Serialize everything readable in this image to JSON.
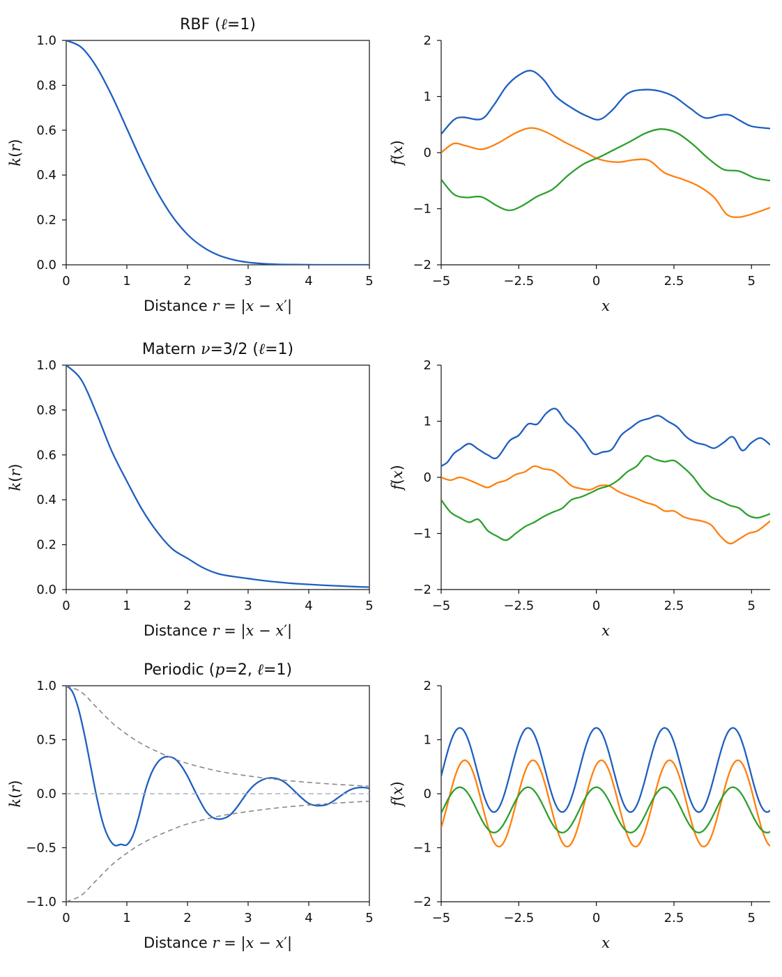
{
  "chart_data": [
    {
      "id": "rbf-kernel",
      "type": "line",
      "title": "RBF (ℓ=1)",
      "xlabel": "Distance r = |x − x′|",
      "ylabel": "k(r)",
      "xlim": [
        0,
        5
      ],
      "ylim": [
        0,
        1
      ],
      "xticks": [
        0,
        1,
        2,
        3,
        4,
        5
      ],
      "xtick_labels": [
        "0",
        "1",
        "2",
        "3",
        "4",
        "5"
      ],
      "yticks": [
        0,
        0.2,
        0.4,
        0.6,
        0.8,
        1.0
      ],
      "ytick_labels": [
        "0.0",
        "0.2",
        "0.4",
        "0.6",
        "0.8",
        "1.0"
      ],
      "grid": false,
      "series": [
        {
          "color": "#1f5fbf",
          "style": "solid",
          "x": [
            0,
            0.25,
            0.5,
            0.75,
            1,
            1.25,
            1.5,
            1.75,
            2,
            2.25,
            2.5,
            2.75,
            3,
            3.25,
            3.5,
            3.75,
            4,
            4.25,
            4.5,
            4.75,
            5
          ],
          "y": [
            1,
            0.969,
            0.882,
            0.755,
            0.607,
            0.458,
            0.325,
            0.216,
            0.135,
            0.08,
            0.044,
            0.023,
            0.011,
            0.005,
            0.002,
            0.001,
            0.0003,
            0.0001,
            0,
            0,
            0
          ]
        }
      ]
    },
    {
      "id": "rbf-samples",
      "type": "line",
      "title": "",
      "xlabel": "x",
      "ylabel": "f(x)",
      "xlim": [
        -5,
        5.6
      ],
      "ylim": [
        -2,
        2
      ],
      "xticks": [
        -5,
        -2.5,
        0,
        2.5,
        5
      ],
      "xtick_labels": [
        "−5",
        "−2.5",
        "0",
        "2.5",
        "5"
      ],
      "yticks": [
        -2,
        -1,
        0,
        1,
        2
      ],
      "ytick_labels": [
        "−2",
        "−1",
        "0",
        "1",
        "2"
      ],
      "grid": false,
      "series": [
        {
          "color": "#1f5fbf",
          "x": [
            -5,
            -4.6,
            -4.3,
            -3.7,
            -3.3,
            -2.9,
            -2.5,
            -2.1,
            -1.7,
            -1.3,
            -0.8,
            -0.3,
            0.1,
            0.5,
            1,
            1.5,
            2,
            2.5,
            3,
            3.5,
            4,
            4.3,
            4.6,
            5,
            5.6
          ],
          "y": [
            0.33,
            0.58,
            0.63,
            0.6,
            0.85,
            1.18,
            1.38,
            1.46,
            1.3,
            1.0,
            0.8,
            0.65,
            0.59,
            0.75,
            1.05,
            1.12,
            1.1,
            1.0,
            0.8,
            0.62,
            0.67,
            0.67,
            0.58,
            0.47,
            0.43
          ]
        },
        {
          "color": "#ff7f0e",
          "x": [
            -5,
            -4.6,
            -4.2,
            -3.7,
            -3.2,
            -2.6,
            -2.1,
            -1.6,
            -1.0,
            -0.4,
            0.1,
            0.7,
            1.2,
            1.7,
            2.2,
            2.8,
            3.3,
            3.8,
            4.2,
            4.6,
            5.1,
            5.6
          ],
          "y": [
            0.0,
            0.16,
            0.12,
            0.06,
            0.16,
            0.35,
            0.44,
            0.36,
            0.18,
            0.02,
            -0.12,
            -0.17,
            -0.13,
            -0.14,
            -0.36,
            -0.48,
            -0.6,
            -0.8,
            -1.1,
            -1.15,
            -1.08,
            -0.98
          ]
        },
        {
          "color": "#2ca02c",
          "x": [
            -5,
            -4.6,
            -4.2,
            -3.7,
            -3.2,
            -2.8,
            -2.4,
            -1.9,
            -1.4,
            -0.9,
            -0.4,
            0.1,
            0.6,
            1.1,
            1.6,
            2.1,
            2.6,
            3.1,
            3.6,
            4.1,
            4.6,
            5.1,
            5.6
          ],
          "y": [
            -0.48,
            -0.74,
            -0.8,
            -0.79,
            -0.95,
            -1.03,
            -0.95,
            -0.78,
            -0.65,
            -0.4,
            -0.2,
            -0.08,
            0.06,
            0.2,
            0.35,
            0.42,
            0.35,
            0.15,
            -0.1,
            -0.3,
            -0.33,
            -0.45,
            -0.5
          ]
        }
      ]
    },
    {
      "id": "matern-kernel",
      "type": "line",
      "title": "Matern ν=3/2 (ℓ=1)",
      "xlabel": "Distance r = |x − x′|",
      "ylabel": "k(r)",
      "xlim": [
        0,
        5
      ],
      "ylim": [
        0,
        1
      ],
      "xticks": [
        0,
        1,
        2,
        3,
        4,
        5
      ],
      "xtick_labels": [
        "0",
        "1",
        "2",
        "3",
        "4",
        "5"
      ],
      "yticks": [
        0,
        0.2,
        0.4,
        0.6,
        0.8,
        1.0
      ],
      "ytick_labels": [
        "0.0",
        "0.2",
        "0.4",
        "0.6",
        "0.8",
        "1.0"
      ],
      "grid": false,
      "series": [
        {
          "color": "#1f5fbf",
          "style": "solid",
          "x": [
            0,
            0.25,
            0.5,
            0.75,
            1,
            1.25,
            1.5,
            1.75,
            2,
            2.25,
            2.5,
            2.75,
            3,
            3.25,
            3.5,
            3.75,
            4,
            4.25,
            4.5,
            4.75,
            5
          ],
          "y": [
            1,
            0.934,
            0.785,
            0.617,
            0.483,
            0.357,
            0.257,
            0.181,
            0.139,
            0.098,
            0.071,
            0.058,
            0.049,
            0.04,
            0.033,
            0.027,
            0.023,
            0.019,
            0.016,
            0.013,
            0.011
          ]
        }
      ]
    },
    {
      "id": "matern-samples",
      "type": "line",
      "title": "",
      "xlabel": "x",
      "ylabel": "f(x)",
      "xlim": [
        -5,
        5.6
      ],
      "ylim": [
        -2,
        2
      ],
      "xticks": [
        -5,
        -2.5,
        0,
        2.5,
        5
      ],
      "xtick_labels": [
        "−5",
        "−2.5",
        "0",
        "2.5",
        "5"
      ],
      "yticks": [
        -2,
        -1,
        0,
        1,
        2
      ],
      "ytick_labels": [
        "−2",
        "−1",
        "0",
        "1",
        "2"
      ],
      "grid": false,
      "series": [
        {
          "color": "#1f5fbf",
          "x": [
            -5,
            -4.8,
            -4.6,
            -4.4,
            -4.1,
            -3.8,
            -3.5,
            -3.2,
            -2.8,
            -2.5,
            -2.2,
            -1.9,
            -1.6,
            -1.3,
            -1.0,
            -0.7,
            -0.4,
            -0.1,
            0.2,
            0.5,
            0.8,
            1.1,
            1.4,
            1.7,
            2.0,
            2.3,
            2.6,
            2.9,
            3.2,
            3.5,
            3.8,
            4.1,
            4.4,
            4.7,
            5.0,
            5.3,
            5.6
          ],
          "y": [
            0.2,
            0.27,
            0.42,
            0.5,
            0.6,
            0.5,
            0.4,
            0.35,
            0.65,
            0.75,
            0.95,
            0.95,
            1.15,
            1.22,
            1.0,
            0.85,
            0.65,
            0.42,
            0.45,
            0.5,
            0.75,
            0.88,
            1.0,
            1.05,
            1.1,
            1.0,
            0.9,
            0.72,
            0.62,
            0.58,
            0.52,
            0.62,
            0.72,
            0.48,
            0.62,
            0.7,
            0.58
          ]
        },
        {
          "color": "#ff7f0e",
          "x": [
            -5,
            -4.7,
            -4.4,
            -4.1,
            -3.8,
            -3.5,
            -3.2,
            -2.9,
            -2.6,
            -2.3,
            -2.0,
            -1.7,
            -1.4,
            -1.1,
            -0.8,
            -0.5,
            -0.2,
            0.1,
            0.4,
            0.7,
            1.0,
            1.3,
            1.6,
            1.9,
            2.2,
            2.5,
            2.8,
            3.1,
            3.4,
            3.7,
            4.0,
            4.3,
            4.6,
            4.9,
            5.2,
            5.6
          ],
          "y": [
            0.0,
            -0.05,
            0.0,
            -0.05,
            -0.12,
            -0.18,
            -0.1,
            -0.05,
            0.05,
            0.1,
            0.2,
            0.15,
            0.12,
            0.0,
            -0.15,
            -0.2,
            -0.22,
            -0.15,
            -0.15,
            -0.25,
            -0.32,
            -0.38,
            -0.45,
            -0.5,
            -0.6,
            -0.6,
            -0.7,
            -0.75,
            -0.78,
            -0.85,
            -1.05,
            -1.18,
            -1.1,
            -1.0,
            -0.95,
            -0.78
          ]
        },
        {
          "color": "#2ca02c",
          "x": [
            -5,
            -4.7,
            -4.4,
            -4.1,
            -3.8,
            -3.5,
            -3.2,
            -2.9,
            -2.6,
            -2.3,
            -2.0,
            -1.7,
            -1.4,
            -1.1,
            -0.8,
            -0.5,
            -0.2,
            0.1,
            0.4,
            0.7,
            1.0,
            1.3,
            1.6,
            1.9,
            2.2,
            2.5,
            2.8,
            3.1,
            3.4,
            3.7,
            4.0,
            4.3,
            4.6,
            4.9,
            5.2,
            5.6
          ],
          "y": [
            -0.4,
            -0.62,
            -0.72,
            -0.8,
            -0.75,
            -0.95,
            -1.05,
            -1.12,
            -1.0,
            -0.88,
            -0.8,
            -0.7,
            -0.62,
            -0.55,
            -0.4,
            -0.35,
            -0.28,
            -0.2,
            -0.15,
            -0.05,
            0.1,
            0.2,
            0.38,
            0.32,
            0.28,
            0.3,
            0.18,
            0.02,
            -0.2,
            -0.35,
            -0.42,
            -0.5,
            -0.55,
            -0.68,
            -0.72,
            -0.65
          ]
        }
      ]
    },
    {
      "id": "periodic-kernel",
      "type": "line",
      "title": "Periodic (p=2, ℓ=1)",
      "xlabel": "Distance r = |x − x′|",
      "ylabel": "k(r)",
      "xlim": [
        0,
        5
      ],
      "ylim": [
        -1,
        1
      ],
      "xticks": [
        0,
        1,
        2,
        3,
        4,
        5
      ],
      "xtick_labels": [
        "0",
        "1",
        "2",
        "3",
        "4",
        "5"
      ],
      "yticks": [
        -1,
        -0.5,
        0,
        0.5,
        1
      ],
      "ytick_labels": [
        "−1.0",
        "−0.5",
        "0.0",
        "0.5",
        "1.0"
      ],
      "grid": false,
      "series": [
        {
          "color": "#1f5fbf",
          "style": "solid",
          "x": [
            0,
            0.1,
            0.2,
            0.3,
            0.4,
            0.5,
            0.6,
            0.7,
            0.8,
            0.9,
            1.0,
            1.1,
            1.2,
            1.3,
            1.4,
            1.5,
            1.6,
            1.7,
            1.8,
            1.9,
            2.0,
            2.1,
            2.2,
            2.3,
            2.4,
            2.5,
            2.6,
            2.7,
            2.8,
            2.9,
            3.0,
            3.1,
            3.2,
            3.3,
            3.4,
            3.5,
            3.6,
            3.7,
            3.8,
            3.9,
            4.0,
            4.1,
            4.2,
            4.3,
            4.4,
            4.5,
            4.6,
            4.7,
            4.8,
            4.9,
            5.0
          ],
          "y": [
            1.0,
            0.946,
            0.79,
            0.55,
            0.264,
            -0.023,
            -0.262,
            -0.409,
            -0.478,
            -0.469,
            -0.473,
            -0.387,
            -0.208,
            0.02,
            0.184,
            0.285,
            0.335,
            0.342,
            0.32,
            0.256,
            0.163,
            0.05,
            -0.06,
            -0.158,
            -0.215,
            -0.235,
            -0.228,
            -0.198,
            -0.136,
            -0.058,
            0.02,
            0.08,
            0.119,
            0.141,
            0.146,
            0.136,
            0.107,
            0.06,
            0.005,
            -0.047,
            -0.09,
            -0.108,
            -0.11,
            -0.1,
            -0.07,
            -0.03,
            0.01,
            0.04,
            0.055,
            0.058,
            0.05
          ]
        },
        {
          "color": "#888888",
          "style": "dashed",
          "x": [
            0,
            0.25,
            0.5,
            0.75,
            1,
            1.25,
            1.5,
            1.75,
            2,
            2.5,
            3,
            3.5,
            4,
            4.5,
            5
          ],
          "y": [
            1.0,
            0.94,
            0.8,
            0.66,
            0.55,
            0.46,
            0.39,
            0.33,
            0.28,
            0.21,
            0.165,
            0.13,
            0.105,
            0.085,
            0.07
          ]
        },
        {
          "color": "#888888",
          "style": "dashed",
          "x": [
            0,
            0.25,
            0.5,
            0.75,
            1,
            1.25,
            1.5,
            1.75,
            2,
            2.5,
            3,
            3.5,
            4,
            4.5,
            5
          ],
          "y": [
            -1.0,
            -0.94,
            -0.8,
            -0.66,
            -0.55,
            -0.46,
            -0.39,
            -0.33,
            -0.28,
            -0.21,
            -0.165,
            -0.13,
            -0.105,
            -0.085,
            -0.07
          ]
        },
        {
          "color": "#aab0bf",
          "style": "dashed",
          "x": [
            0,
            5
          ],
          "y": [
            0,
            0
          ]
        }
      ]
    },
    {
      "id": "periodic-samples",
      "type": "line",
      "title": "",
      "xlabel": "x",
      "ylabel": "f(x)",
      "xlim": [
        -5,
        5.6
      ],
      "ylim": [
        -2,
        2
      ],
      "xticks": [
        -5,
        -2.5,
        0,
        2.5,
        5
      ],
      "xtick_labels": [
        "−5",
        "−2.5",
        "0",
        "2.5",
        "5"
      ],
      "yticks": [
        -2,
        -1,
        0,
        1,
        2
      ],
      "ytick_labels": [
        "−2",
        "−1",
        "0",
        "1",
        "2"
      ],
      "grid": false,
      "periodic_series": [
        {
          "color": "#1f5fbf",
          "offset": 0.44,
          "amplitude": 0.78,
          "phase": 0.0
        },
        {
          "color": "#ff7f0e",
          "offset": -0.18,
          "amplitude": 0.8,
          "phase": 0.16
        },
        {
          "color": "#2ca02c",
          "offset": -0.3,
          "amplitude": 0.42,
          "phase": 0.0
        }
      ],
      "period": 2.2,
      "peak_x": -4.4
    }
  ]
}
